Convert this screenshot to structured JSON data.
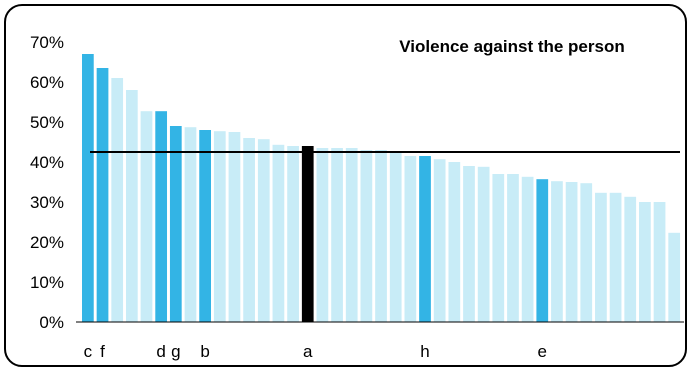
{
  "chart_data": {
    "type": "bar",
    "title": "Violence against the person",
    "ylim": [
      0,
      70
    ],
    "yticks": [
      "0%",
      "10%",
      "20%",
      "30%",
      "40%",
      "50%",
      "60%",
      "70%"
    ],
    "values": [
      67,
      63.5,
      61,
      58,
      52.7,
      52.7,
      49,
      48.7,
      48,
      47.7,
      47.5,
      46,
      45.7,
      44.3,
      44,
      44,
      43.5,
      43.5,
      43.5,
      43,
      43,
      42.5,
      41.5,
      41.5,
      40.7,
      40,
      39,
      38.8,
      37,
      37,
      36.3,
      35.7,
      35.2,
      35,
      34.7,
      32.3,
      32.3,
      31.3,
      30,
      30,
      22.3
    ],
    "highlight_labels": [
      "c",
      "f",
      "",
      "",
      "",
      "d",
      "g",
      "",
      "b",
      "",
      "",
      "",
      "",
      "",
      "",
      "a",
      "",
      "",
      "",
      "",
      "",
      "",
      "",
      "h",
      "",
      "",
      "",
      "",
      "",
      "",
      "",
      "e",
      "",
      "",
      "",
      "",
      "",
      "",
      "",
      "",
      ""
    ],
    "highlight_kind": [
      "hi",
      "hi",
      "",
      "",
      "",
      "hi",
      "hi",
      "",
      "hi",
      "",
      "",
      "",
      "",
      "",
      "",
      "avg",
      "",
      "",
      "",
      "",
      "",
      "",
      "",
      "hi",
      "",
      "",
      "",
      "",
      "",
      "",
      "",
      "hi",
      "",
      "",
      "",
      "",
      "",
      "",
      "",
      "",
      ""
    ],
    "reference_line": 42.5,
    "colors": {
      "base": "#c8ecf7",
      "highlight": "#33b4e5",
      "average": "#000000",
      "line": "#000000"
    },
    "grid": false,
    "legend": "none"
  }
}
